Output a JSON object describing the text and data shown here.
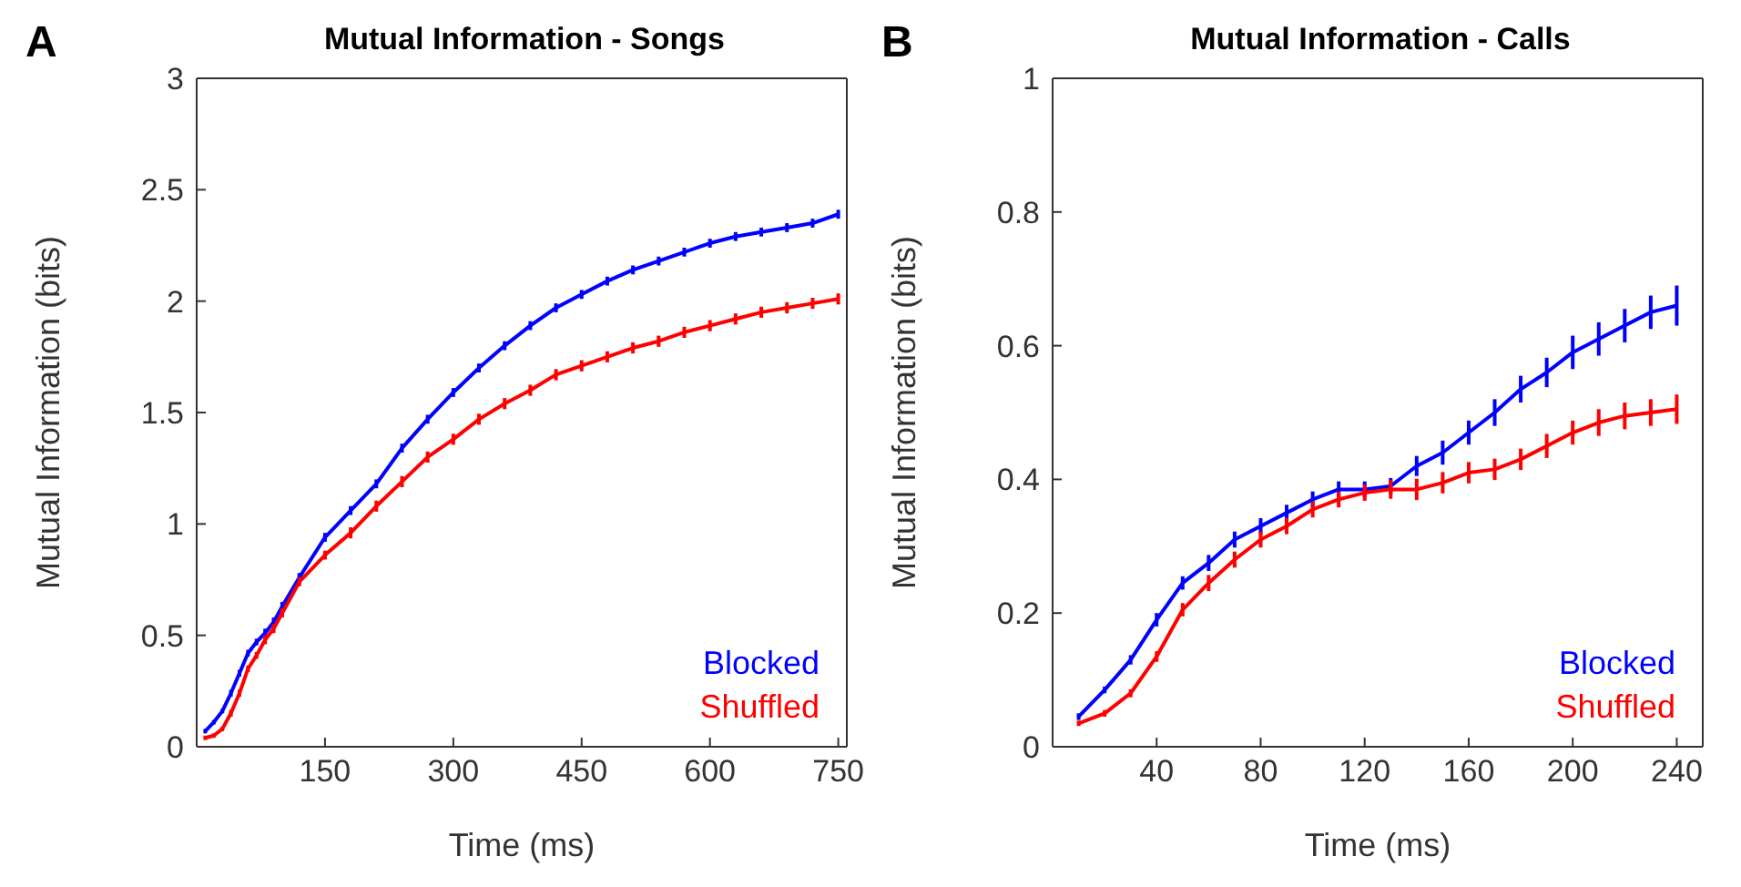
{
  "chart_data": [
    {
      "type": "line",
      "title": "Mutual Information - Songs",
      "xlabel": "Time (ms)",
      "ylabel": "Mutual Information (bits)",
      "annotations": [
        "A"
      ],
      "legend": "bottom right",
      "marker": "none",
      "line_style": "solid",
      "xlim": [
        0,
        760
      ],
      "xticks": [
        150,
        300,
        450,
        600,
        750
      ],
      "ylim": [
        0,
        3
      ],
      "yticks": [
        0,
        0.5,
        1,
        1.5,
        2,
        2.5,
        3
      ],
      "x": [
        10,
        20,
        30,
        40,
        50,
        60,
        70,
        80,
        90,
        100,
        120,
        150,
        180,
        210,
        240,
        270,
        300,
        330,
        360,
        390,
        420,
        450,
        480,
        510,
        540,
        570,
        600,
        630,
        660,
        690,
        720,
        750
      ],
      "series": [
        {
          "name": "Blocked",
          "color": "#0000ff",
          "values": [
            0.07,
            0.11,
            0.16,
            0.24,
            0.33,
            0.42,
            0.47,
            0.51,
            0.56,
            0.63,
            0.76,
            0.94,
            1.06,
            1.18,
            1.34,
            1.47,
            1.59,
            1.7,
            1.8,
            1.89,
            1.97,
            2.03,
            2.09,
            2.14,
            2.18,
            2.22,
            2.26,
            2.29,
            2.31,
            2.33,
            2.35,
            2.39
          ],
          "errors": [
            0.01,
            0.01,
            0.01,
            0.015,
            0.015,
            0.015,
            0.015,
            0.02,
            0.02,
            0.02,
            0.02,
            0.02,
            0.02,
            0.02,
            0.02,
            0.02,
            0.02,
            0.02,
            0.02,
            0.02,
            0.02,
            0.02,
            0.02,
            0.02,
            0.02,
            0.02,
            0.02,
            0.02,
            0.02,
            0.02,
            0.02,
            0.02
          ]
        },
        {
          "name": "Shuffled",
          "color": "#ff0000",
          "values": [
            0.04,
            0.05,
            0.08,
            0.15,
            0.24,
            0.35,
            0.41,
            0.48,
            0.53,
            0.6,
            0.74,
            0.86,
            0.96,
            1.08,
            1.19,
            1.3,
            1.38,
            1.47,
            1.54,
            1.6,
            1.67,
            1.71,
            1.75,
            1.79,
            1.82,
            1.86,
            1.89,
            1.92,
            1.95,
            1.97,
            1.99,
            2.01
          ],
          "errors": [
            0.01,
            0.01,
            0.01,
            0.015,
            0.015,
            0.015,
            0.015,
            0.02,
            0.02,
            0.02,
            0.02,
            0.02,
            0.025,
            0.025,
            0.025,
            0.025,
            0.025,
            0.025,
            0.025,
            0.025,
            0.025,
            0.025,
            0.025,
            0.025,
            0.025,
            0.025,
            0.025,
            0.025,
            0.025,
            0.025,
            0.025,
            0.025
          ]
        }
      ]
    },
    {
      "type": "line",
      "title": "Mutual Information - Calls",
      "xlabel": "Time (ms)",
      "ylabel": "Mutual Information (bits)",
      "annotations": [
        "B"
      ],
      "legend": "bottom right",
      "marker": "none",
      "line_style": "solid",
      "xlim": [
        0,
        250
      ],
      "xticks": [
        40,
        80,
        120,
        160,
        200,
        240
      ],
      "ylim": [
        0,
        1
      ],
      "yticks": [
        0,
        0.2,
        0.4,
        0.6,
        0.8,
        1
      ],
      "x": [
        10,
        20,
        30,
        40,
        50,
        60,
        70,
        80,
        90,
        100,
        110,
        120,
        130,
        140,
        150,
        160,
        170,
        180,
        190,
        200,
        210,
        220,
        230,
        240
      ],
      "series": [
        {
          "name": "Blocked",
          "color": "#0000ff",
          "values": [
            0.045,
            0.085,
            0.13,
            0.19,
            0.245,
            0.275,
            0.31,
            0.33,
            0.35,
            0.37,
            0.385,
            0.385,
            0.39,
            0.42,
            0.44,
            0.47,
            0.5,
            0.535,
            0.56,
            0.59,
            0.61,
            0.63,
            0.65,
            0.66
          ],
          "errors": [
            0.005,
            0.005,
            0.007,
            0.01,
            0.01,
            0.012,
            0.012,
            0.012,
            0.012,
            0.012,
            0.012,
            0.012,
            0.012,
            0.015,
            0.018,
            0.018,
            0.02,
            0.02,
            0.022,
            0.025,
            0.025,
            0.025,
            0.025,
            0.03
          ]
        },
        {
          "name": "Shuffled",
          "color": "#ff0000",
          "values": [
            0.035,
            0.05,
            0.08,
            0.135,
            0.205,
            0.245,
            0.28,
            0.31,
            0.33,
            0.355,
            0.37,
            0.38,
            0.385,
            0.385,
            0.395,
            0.41,
            0.415,
            0.43,
            0.45,
            0.47,
            0.485,
            0.495,
            0.5,
            0.505
          ],
          "errors": [
            0.004,
            0.005,
            0.006,
            0.008,
            0.01,
            0.012,
            0.012,
            0.012,
            0.012,
            0.012,
            0.012,
            0.012,
            0.014,
            0.016,
            0.016,
            0.016,
            0.016,
            0.016,
            0.018,
            0.018,
            0.02,
            0.02,
            0.02,
            0.022
          ]
        }
      ]
    }
  ]
}
